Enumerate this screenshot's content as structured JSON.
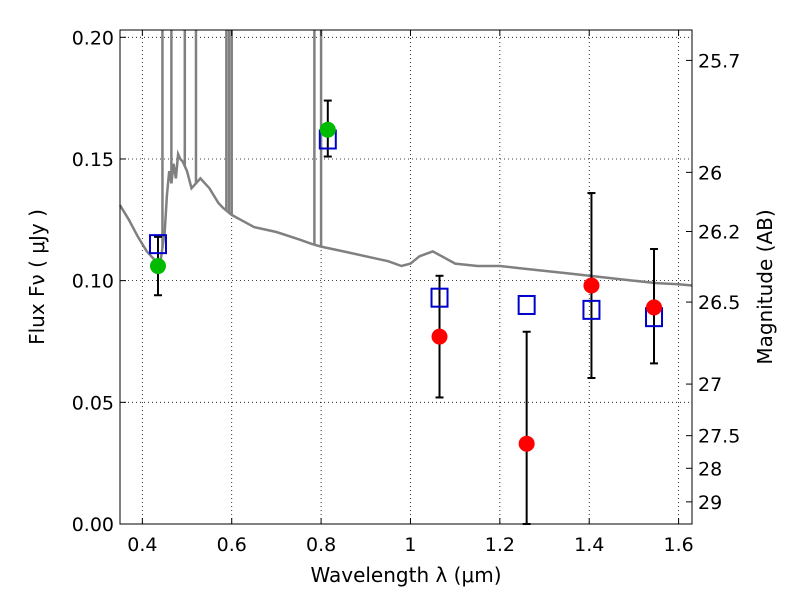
{
  "chart_data": {
    "type": "scatter",
    "xlabel": "Wavelength  λ (μm)",
    "ylabel": "Flux  Fν  ( μJy )",
    "y2label": "Magnitude (AB)",
    "xlim": [
      0.35,
      1.63
    ],
    "ylim": [
      0.0,
      0.203
    ],
    "grid": true,
    "x_ticks": [
      "0.4",
      "0.6",
      "0.8",
      "1",
      "1.2",
      "1.4",
      "1.6"
    ],
    "x_tick_values": [
      0.4,
      0.6,
      0.8,
      1.0,
      1.2,
      1.4,
      1.6
    ],
    "y_ticks": [
      "0.00",
      "0.05",
      "0.10",
      "0.15",
      "0.20"
    ],
    "y_tick_values": [
      0.0,
      0.05,
      0.1,
      0.15,
      0.2
    ],
    "y2_ticks": [
      {
        "label": "25.7",
        "flux": 0.1905
      },
      {
        "label": "26",
        "flux": 0.1445
      },
      {
        "label": "26.2",
        "flux": 0.1202
      },
      {
        "label": "26.5",
        "flux": 0.0912
      },
      {
        "label": "27",
        "flux": 0.0575
      },
      {
        "label": "27.5",
        "flux": 0.0363
      },
      {
        "label": "28",
        "flux": 0.0229
      },
      {
        "label": "29",
        "flux": 0.0091
      }
    ],
    "model_spectrum": {
      "color": "#808080",
      "x": [
        0.35,
        0.37,
        0.39,
        0.41,
        0.43,
        0.44,
        0.45,
        0.455,
        0.46,
        0.465,
        0.47,
        0.475,
        0.48,
        0.485,
        0.49,
        0.5,
        0.51,
        0.52,
        0.53,
        0.54,
        0.55,
        0.56,
        0.57,
        0.58,
        0.6,
        0.62,
        0.65,
        0.7,
        0.75,
        0.78,
        0.8,
        0.85,
        0.9,
        0.95,
        0.98,
        1.0,
        1.02,
        1.05,
        1.08,
        1.1,
        1.15,
        1.2,
        1.25,
        1.3,
        1.35,
        1.4,
        1.45,
        1.5,
        1.55,
        1.6,
        1.63
      ],
      "y": [
        0.131,
        0.125,
        0.118,
        0.112,
        0.108,
        0.107,
        0.12,
        0.135,
        0.145,
        0.14,
        0.148,
        0.142,
        0.152,
        0.15,
        0.149,
        0.145,
        0.138,
        0.14,
        0.142,
        0.14,
        0.138,
        0.135,
        0.132,
        0.13,
        0.127,
        0.125,
        0.122,
        0.12,
        0.117,
        0.115,
        0.114,
        0.112,
        0.11,
        0.108,
        0.106,
        0.107,
        0.11,
        0.112,
        0.109,
        0.107,
        0.106,
        0.106,
        0.105,
        0.104,
        0.103,
        0.102,
        0.101,
        0.1,
        0.099,
        0.0985,
        0.098
      ]
    },
    "spectrum_spikes": [
      {
        "x": 0.445,
        "y_top": 0.203
      },
      {
        "x": 0.465,
        "y_top": 0.203
      },
      {
        "x": 0.495,
        "y_top": 0.203
      },
      {
        "x": 0.52,
        "y_top": 0.203
      },
      {
        "x": 0.588,
        "y_top": 0.203
      },
      {
        "x": 0.594,
        "y_top": 0.203
      },
      {
        "x": 0.6,
        "y_top": 0.203
      },
      {
        "x": 0.785,
        "y_top": 0.203
      },
      {
        "x": 0.8,
        "y_top": 0.203
      }
    ],
    "model_photometry": {
      "color": "#0000cc",
      "points": [
        {
          "x": 0.435,
          "y": 0.115
        },
        {
          "x": 0.815,
          "y": 0.158
        },
        {
          "x": 1.065,
          "y": 0.093
        },
        {
          "x": 1.26,
          "y": 0.09
        },
        {
          "x": 1.405,
          "y": 0.088
        },
        {
          "x": 1.545,
          "y": 0.085
        }
      ]
    },
    "detections": {
      "color": "#00bb00",
      "points": [
        {
          "x": 0.435,
          "y": 0.106,
          "err_lo": 0.094,
          "err_hi": 0.118
        },
        {
          "x": 0.815,
          "y": 0.162,
          "err_lo": 0.151,
          "err_hi": 0.174
        }
      ]
    },
    "measurements": {
      "color": "#ff0000",
      "points": [
        {
          "x": 1.065,
          "y": 0.077,
          "err_lo": 0.052,
          "err_hi": 0.102
        },
        {
          "x": 1.26,
          "y": 0.033,
          "err_lo": 0.0,
          "err_hi": 0.079
        },
        {
          "x": 1.405,
          "y": 0.098,
          "err_lo": 0.06,
          "err_hi": 0.136
        },
        {
          "x": 1.545,
          "y": 0.089,
          "err_lo": 0.066,
          "err_hi": 0.113
        }
      ]
    }
  }
}
